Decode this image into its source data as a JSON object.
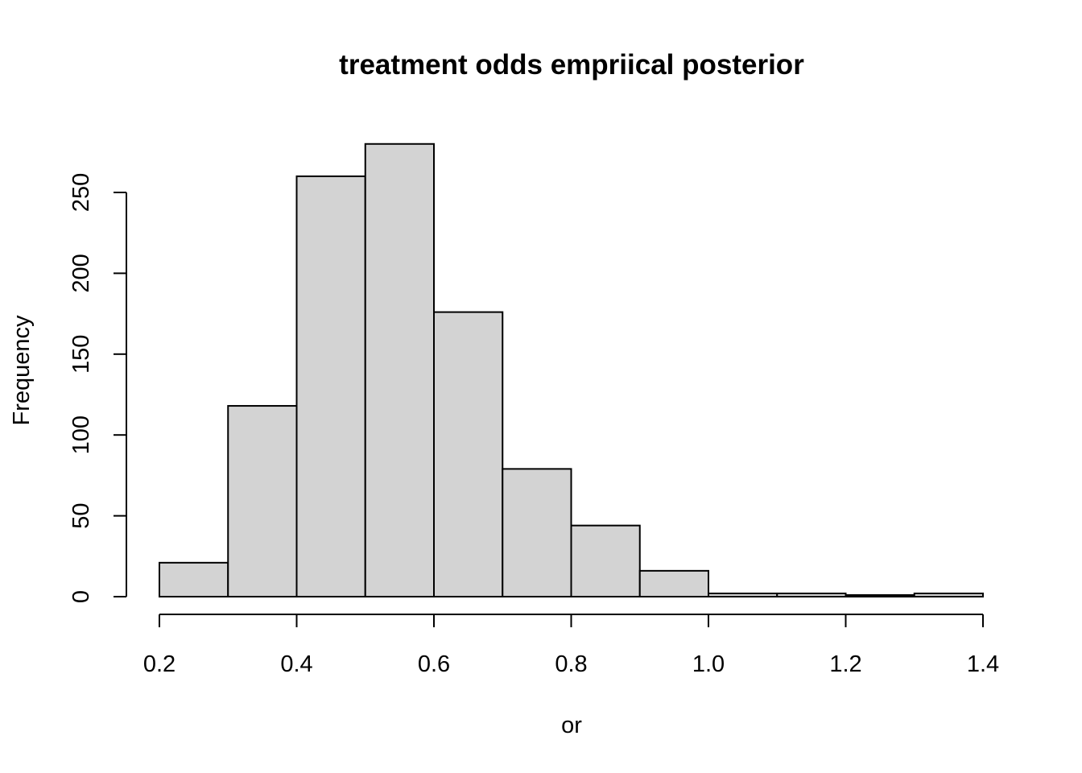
{
  "chart_data": {
    "type": "bar",
    "subtype": "histogram",
    "title": "treatment odds empriical posterior",
    "xlabel": "or",
    "ylabel": "Frequency",
    "bins": [
      {
        "start": 0.2,
        "end": 0.3,
        "count": 21
      },
      {
        "start": 0.3,
        "end": 0.4,
        "count": 118
      },
      {
        "start": 0.4,
        "end": 0.5,
        "count": 260
      },
      {
        "start": 0.5,
        "end": 0.6,
        "count": 280
      },
      {
        "start": 0.6,
        "end": 0.7,
        "count": 176
      },
      {
        "start": 0.7,
        "end": 0.8,
        "count": 79
      },
      {
        "start": 0.8,
        "end": 0.9,
        "count": 44
      },
      {
        "start": 0.9,
        "end": 1.0,
        "count": 16
      },
      {
        "start": 1.0,
        "end": 1.1,
        "count": 2
      },
      {
        "start": 1.1,
        "end": 1.2,
        "count": 2
      },
      {
        "start": 1.2,
        "end": 1.3,
        "count": 1
      },
      {
        "start": 1.3,
        "end": 1.4,
        "count": 2
      }
    ],
    "xlim": [
      0.2,
      1.4
    ],
    "ylim": [
      0,
      280
    ],
    "x_ticks": [
      "0.2",
      "0.4",
      "0.6",
      "0.8",
      "1.0",
      "1.2",
      "1.4"
    ],
    "y_ticks": [
      "0",
      "50",
      "100",
      "150",
      "200",
      "250"
    ],
    "bar_color": "#d3d3d3",
    "grid": false,
    "legend": "none"
  }
}
